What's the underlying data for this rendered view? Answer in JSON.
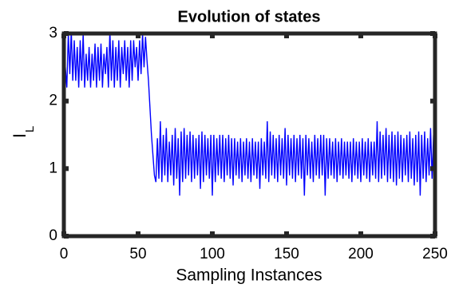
{
  "chart_data": {
    "type": "line",
    "title": "Evolution of states",
    "xlabel": "Sampling Instances",
    "ylabel": "I",
    "ylabel_subscript": "L",
    "xlim": [
      0,
      250
    ],
    "ylim": [
      0,
      3
    ],
    "xticks": [
      0,
      50,
      100,
      150,
      200,
      250
    ],
    "yticks": [
      0,
      1,
      2,
      3
    ],
    "grid": false,
    "x": [
      0,
      1,
      2,
      3,
      4,
      5,
      6,
      7,
      8,
      9,
      10,
      11,
      12,
      13,
      14,
      15,
      16,
      17,
      18,
      19,
      20,
      21,
      22,
      23,
      24,
      25,
      26,
      27,
      28,
      29,
      30,
      31,
      32,
      33,
      34,
      35,
      36,
      37,
      38,
      39,
      40,
      41,
      42,
      43,
      44,
      45,
      46,
      47,
      48,
      49,
      50,
      51,
      52,
      53,
      54,
      55,
      56,
      57,
      58,
      59,
      60,
      61,
      62,
      63,
      64,
      65,
      66,
      67,
      68,
      69,
      70,
      71,
      72,
      73,
      74,
      75,
      76,
      77,
      78,
      79,
      80,
      81,
      82,
      83,
      84,
      85,
      86,
      87,
      88,
      89,
      90,
      91,
      92,
      93,
      94,
      95,
      96,
      97,
      98,
      99,
      100,
      101,
      102,
      103,
      104,
      105,
      106,
      107,
      108,
      109,
      110,
      111,
      112,
      113,
      114,
      115,
      116,
      117,
      118,
      119,
      120,
      121,
      122,
      123,
      124,
      125,
      126,
      127,
      128,
      129,
      130,
      131,
      132,
      133,
      134,
      135,
      136,
      137,
      138,
      139,
      140,
      141,
      142,
      143,
      144,
      145,
      146,
      147,
      148,
      149,
      150,
      151,
      152,
      153,
      154,
      155,
      156,
      157,
      158,
      159,
      160,
      161,
      162,
      163,
      164,
      165,
      166,
      167,
      168,
      169,
      170,
      171,
      172,
      173,
      174,
      175,
      176,
      177,
      178,
      179,
      180,
      181,
      182,
      183,
      184,
      185,
      186,
      187,
      188,
      189,
      190,
      191,
      192,
      193,
      194,
      195,
      196,
      197,
      198,
      199,
      200,
      201,
      202,
      203,
      204,
      205,
      206,
      207,
      208,
      209,
      210,
      211,
      212,
      213,
      214,
      215,
      216,
      217,
      218,
      219,
      220,
      221,
      222,
      223,
      224,
      225,
      226,
      227,
      228,
      229,
      230,
      231,
      232,
      233,
      234,
      235,
      236,
      237,
      238,
      239,
      240,
      241,
      242,
      243,
      244,
      245,
      246,
      247,
      248,
      249,
      250
    ],
    "series": [
      {
        "name": "IL",
        "color": "#0000ff",
        "values": [
          0,
          2.5,
          2.2,
          3.0,
          2.4,
          3.05,
          2.3,
          2.9,
          2.3,
          2.8,
          2.2,
          2.9,
          2.3,
          3.0,
          2.2,
          2.7,
          2.3,
          2.8,
          2.2,
          2.7,
          2.3,
          2.85,
          2.2,
          2.8,
          2.3,
          2.85,
          2.2,
          2.7,
          2.4,
          2.8,
          2.2,
          3.05,
          2.3,
          2.9,
          2.2,
          2.8,
          2.3,
          2.9,
          2.2,
          2.8,
          2.4,
          2.9,
          2.3,
          2.8,
          2.2,
          2.9,
          2.3,
          2.9,
          2.5,
          2.8,
          2.3,
          2.9,
          2.4,
          3.0,
          2.5,
          2.95,
          2.6,
          2.3,
          1.9,
          1.5,
          1.2,
          0.9,
          0.8,
          1.45,
          0.85,
          1.7,
          0.8,
          1.5,
          0.9,
          1.6,
          0.8,
          1.4,
          0.9,
          1.5,
          0.75,
          1.6,
          0.85,
          1.45,
          0.6,
          1.55,
          0.8,
          1.6,
          0.85,
          1.5,
          0.9,
          1.55,
          0.8,
          1.5,
          0.85,
          1.45,
          0.9,
          1.5,
          0.7,
          1.55,
          0.8,
          1.5,
          0.9,
          1.45,
          0.85,
          1.5,
          0.6,
          1.5,
          0.8,
          1.45,
          0.9,
          1.5,
          0.85,
          1.5,
          0.8,
          1.45,
          0.9,
          1.5,
          0.85,
          1.45,
          0.75,
          1.45,
          0.9,
          1.4,
          0.85,
          1.45,
          0.8,
          1.4,
          0.9,
          1.45,
          0.85,
          1.4,
          0.8,
          1.45,
          0.9,
          1.4,
          0.85,
          1.4,
          0.7,
          1.45,
          0.9,
          1.4,
          0.85,
          1.7,
          0.8,
          1.55,
          0.9,
          1.5,
          0.85,
          1.45,
          0.8,
          1.5,
          0.9,
          1.45,
          0.85,
          1.6,
          0.75,
          1.5,
          0.9,
          1.45,
          0.85,
          1.5,
          0.8,
          1.45,
          0.9,
          1.5,
          0.85,
          1.45,
          0.6,
          1.5,
          0.9,
          1.45,
          0.85,
          1.4,
          0.8,
          1.5,
          0.9,
          1.45,
          0.85,
          1.5,
          0.9,
          1.5,
          0.6,
          1.45,
          0.85,
          1.45,
          0.9,
          1.4,
          0.85,
          1.45,
          0.8,
          1.4,
          0.9,
          1.45,
          0.85,
          1.4,
          0.9,
          1.4,
          0.85,
          1.4,
          0.8,
          1.45,
          0.9,
          1.4,
          0.85,
          1.4,
          0.8,
          1.45,
          0.9,
          1.4,
          0.85,
          1.45,
          0.8,
          1.4,
          0.9,
          1.4,
          0.85,
          1.7,
          0.8,
          1.55,
          0.85,
          1.5,
          0.9,
          1.6,
          0.8,
          1.5,
          0.85,
          1.55,
          0.8,
          1.5,
          0.75,
          1.55,
          0.85,
          1.5,
          0.8,
          1.45,
          0.9,
          1.5,
          0.8,
          1.55,
          0.85,
          1.45,
          0.75,
          1.5,
          0.8,
          1.55,
          0.6,
          1.5,
          0.85,
          1.55,
          0.8,
          1.45,
          0.9,
          1.6,
          0.85,
          1.5,
          0.95
        ]
      }
    ]
  }
}
